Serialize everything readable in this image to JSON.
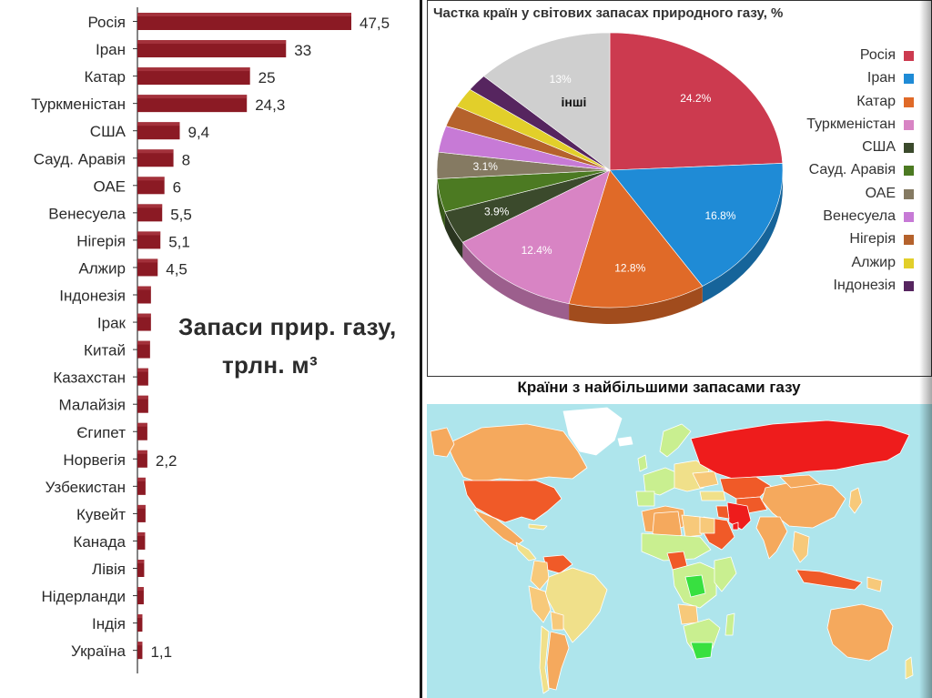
{
  "chart_data": [
    {
      "type": "bar",
      "orientation": "horizontal",
      "title": "Запаси прир. газу, трлн. м³",
      "title_line1": "Запаси прир. газу,",
      "title_line2": "трлн. м³",
      "categories": [
        "Росія",
        "Іран",
        "Катар",
        "Туркменістан",
        "США",
        "Сауд. Аравія",
        "ОАЕ",
        "Венесуела",
        "Нігерія",
        "Алжир",
        "Індонезія",
        "Ірак",
        "Китай",
        "Казахстан",
        "Малайзія",
        "Єгипет",
        "Норвегія",
        "Узбекистан",
        "Кувейт",
        "Канада",
        "Лівія",
        "Нідерланди",
        "Індія",
        "Україна"
      ],
      "values": [
        47.5,
        33,
        25,
        24.3,
        9.4,
        8,
        6,
        5.5,
        5.1,
        4.5,
        3.0,
        3.0,
        2.8,
        2.4,
        2.4,
        2.2,
        2.2,
        1.8,
        1.8,
        1.7,
        1.5,
        1.4,
        1.1,
        1.1
      ],
      "value_labels": [
        "47,5",
        "33",
        "25",
        "24,3",
        "9,4",
        "8",
        "6",
        "5,5",
        "5,1",
        "4,5",
        "",
        "",
        "",
        "",
        "",
        "",
        "2,2",
        "",
        "",
        "",
        "",
        "",
        "",
        "1,1"
      ],
      "bar_color": "#8b1a24"
    },
    {
      "type": "pie",
      "title": "Частка країн у світових запасах природного газу, %",
      "categories": [
        "Росія",
        "Іран",
        "Катар",
        "Туркменістан",
        "США",
        "Сауд. Аравія",
        "ОАЕ",
        "Венесуела",
        "Нігерія",
        "Алжир",
        "Індонезія",
        "інші"
      ],
      "values": [
        24.2,
        16.8,
        12.8,
        12.4,
        3.9,
        3.9,
        3.1,
        3.1,
        2.5,
        2.3,
        2.0,
        13
      ],
      "value_labels": [
        "24.2%",
        "16.8%",
        "12.8%",
        "12.4%",
        "3.9%",
        "",
        "3.1%",
        "",
        "",
        "",
        "",
        "13%"
      ],
      "colors": [
        "#cc3a4f",
        "#1f8bd6",
        "#e06a28",
        "#d884c4",
        "#3b4a2c",
        "#4c7a22",
        "#857a62",
        "#c77ad6",
        "#b5622c",
        "#e2cf2a",
        "#56255f",
        "#cfcfcf"
      ],
      "legend": [
        "Росія",
        "Іран",
        "Катар",
        "Туркменістан",
        "США",
        "Сауд. Аравія",
        "ОАЕ",
        "Венесуела",
        "Нігерія",
        "Алжир",
        "Індонезія"
      ],
      "legend_colors": [
        "#cc3a4f",
        "#1f8bd6",
        "#e06a28",
        "#d884c4",
        "#3b4a2c",
        "#4c7a22",
        "#857a62",
        "#c77ad6",
        "#b5622c",
        "#e2cf2a",
        "#56255f"
      ],
      "others_label": "інші",
      "legend_placement": "right"
    }
  ],
  "map": {
    "title": "Країни з найбільшими запасами газу",
    "ocean_color": "#aee5ec",
    "colors": {
      "highest": "#ee1c1c",
      "high": "#f05a28",
      "medium": "#f5a95d",
      "lowmed": "#f7c97a",
      "low": "#f0e08a",
      "lower": "#c9ef90",
      "lowest": "#38e040",
      "none": "#ffffff"
    }
  }
}
